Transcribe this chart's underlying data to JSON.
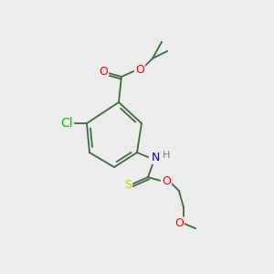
{
  "bg_color": "#ececec",
  "bond_color": "#3d6b3d",
  "atom_colors": {
    "O": "#ff0000",
    "N": "#0000cc",
    "Cl": "#00cc00",
    "S": "#cccc00",
    "C": "#3d6b3d",
    "H": "#808080"
  },
  "font_size": 9,
  "bond_width": 1.3
}
